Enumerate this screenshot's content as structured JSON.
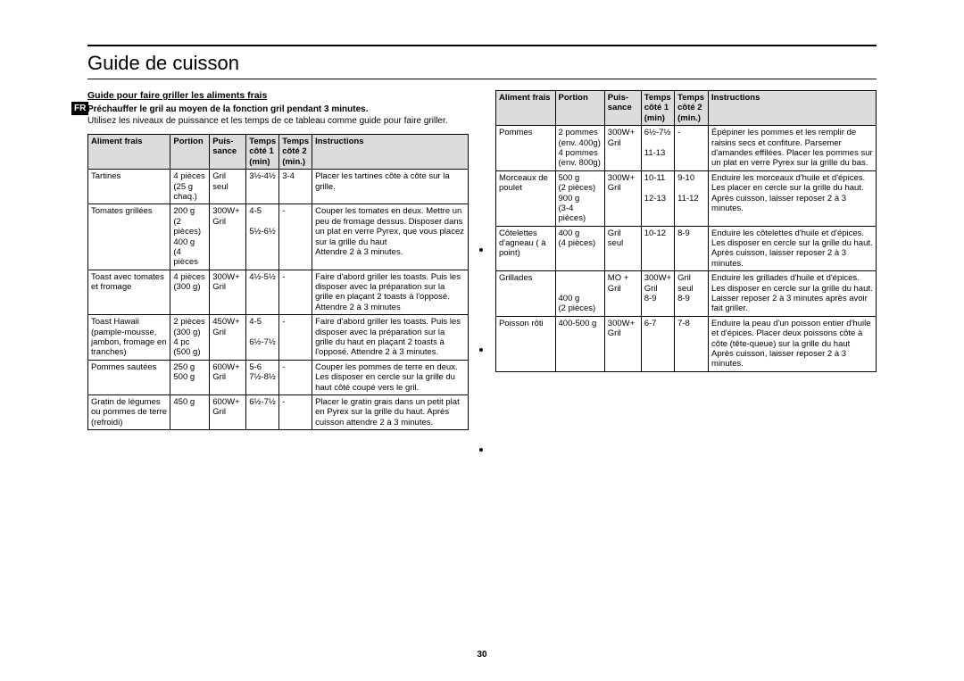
{
  "lang_badge": "FR",
  "title": "Guide de cuisson",
  "subheading": "Guide pour faire griller les aliments frais",
  "preheat": "Préchauffer le gril au moyen de la fonction gril pendant 3 minutes.",
  "intro": "Utilisez les niveaux de puissance et les temps de ce tableau comme guide pour faire griller.",
  "headers": {
    "food": "Aliment frais",
    "portion": "Portion",
    "power1": "Puis-",
    "power2": "sance",
    "time1a": "Temps",
    "time1b": "côté 1",
    "time1c": "(min)",
    "time2a": "Temps",
    "time2b": "côté 2",
    "time2c": "(min.)",
    "instr": "Instructions"
  },
  "left": [
    {
      "food": "Tartines",
      "portion": "4 pièces\n(25 g chaq.)",
      "power": "Gril seul",
      "t1": "3½-4½",
      "t2": "3-4",
      "instr": "Placer les tartines côte à côte sur la grille."
    },
    {
      "food": "Tomates grillées",
      "portion": "200 g\n(2 pièces)\n400 g\n(4 pièces",
      "power": "300W+ Gril",
      "t1": "4-5\n\n5½-6½",
      "t2": "-",
      "instr": "Couper les tomates en deux. Mettre un peu de fromage dessus. Disposer dans un plat en verre Pyrex, que vous placez sur la grille du haut\nAttendre 2 à 3 minutes."
    },
    {
      "food": "Toast avec tomates et fromage",
      "portion": "4 pièces\n(300 g)",
      "power": "300W+ Gril",
      "t1": "4½-5½",
      "t2": "-",
      "instr": "Faire d'abord griller les toasts. Puis les disposer avec la préparation sur la grille en plaçant 2 toasts à l'opposé. Attendre 2 à 3 minutes"
    },
    {
      "food": "Toast Hawaii (pample-mousse, jambon, fromage en tranches)",
      "portion": "2 pièces\n(300 g)\n4 pc\n(500 g)",
      "power": "450W+ Gril",
      "t1": "4-5\n\n6½-7½",
      "t2": "-",
      "instr": "Faire d'abord griller les toasts. Puis les disposer avec la préparation sur la grille du haut en plaçant 2 toasts à l'opposé. Attendre 2 à 3 minutes."
    },
    {
      "food": "Pommes sautées",
      "portion": "250 g\n500 g",
      "power": "600W+ Gril",
      "t1": "5-6\n7½-8½",
      "t2": "-",
      "instr": "Couper les pommes de terre en deux. Les disposer en cercle sur la grille du haut côté coupé vers le gril."
    },
    {
      "food": "Gratin de légumes ou pommes de terre (refroidi)",
      "portion": "450 g",
      "power": "600W+ Gril",
      "t1": "6½-7½",
      "t2": "-",
      "instr": "Placer le gratin grais dans un petit plat en Pyrex sur la grille du haut. Après cuisson attendre 2 à 3 minutes."
    }
  ],
  "right": [
    {
      "food": "Pommes",
      "portion": "2 pommes (env. 400g)\n4 pommes (env. 800g)",
      "power": "300W+ Gril",
      "t1": "6½-7½\n\n11-13",
      "t2": "-",
      "instr": "Épépiner les pommes et les remplir de raisins secs et confiture. Parsemer d'amandes effilées. Placer les pommes sur un plat en verre Pyrex sur la grille du bas."
    },
    {
      "food": "Morceaux de poulet",
      "portion": "500 g\n(2 pièces)\n900 g\n(3-4 pièces)",
      "power": "300W+ Gril",
      "t1": "10-11\n\n12-13",
      "t2": "9-10\n\n11-12",
      "instr": "Enduire les morceaux d'huile et d'épices. Les placer en cercle sur la grille du haut.\nAprès cuisson, laisser reposer 2 à 3 minutes."
    },
    {
      "food": "Côtelettes d'agneau ( à point)",
      "portion": "400 g\n(4 pièces)",
      "power": "Gril seul",
      "t1": "10-12",
      "t2": "8-9",
      "instr": "Enduire les côtelettes d'huile et  d'épices. Les disposer en cercle sur la grille du haut. Après cuisson, laisser reposer 2 à 3 minutes."
    },
    {
      "food": "Grillades",
      "portion": "\n\n400 g\n(2 pièces)",
      "power": "MO + Gril",
      "t1": "300W+\nGril\n8-9",
      "t2": "Gril seul\n8-9",
      "instr": "Enduire les grillades d'huile et d'épices. Les disposer en cercle sur la grille du haut. Laisser reposer 2 à 3 minutes après avoir fait griller."
    },
    {
      "food": "Poisson rôti",
      "portion": "400-500 g",
      "power": "300W+ Gril",
      "t1": "6-7",
      "t2": "7-8",
      "instr": "Enduire la peau d'un poisson entier d'huile et d'épices. Placer deux poissons côte à côte (tête-queue) sur la grille du haut\nAprès cuisson, laisser reposer 2 à 3 minutes."
    }
  ],
  "pagenum": "30"
}
